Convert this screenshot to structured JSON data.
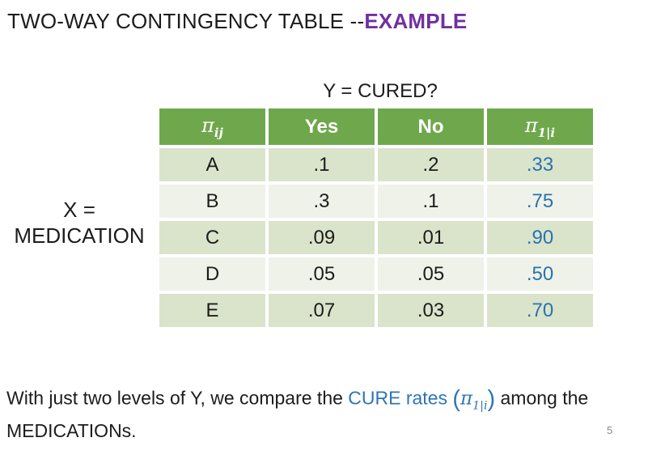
{
  "title": {
    "main": "TWO-WAY CONTINGENCY TABLE --",
    "highlight": "EXAMPLE"
  },
  "table": {
    "top_label": "Y = CURED?",
    "left_label_line1": "X =",
    "left_label_line2": "MEDICATION",
    "header": {
      "pi_symbol": "π",
      "pi_ij_sub": "ij",
      "yes": "Yes",
      "no": "No",
      "pi_cond_symbol": "π",
      "pi_cond_sub": "1|i"
    },
    "rows": [
      {
        "med": "A",
        "yes": ".1",
        "no": ".2",
        "rate": ".33"
      },
      {
        "med": "B",
        "yes": ".3",
        "no": ".1",
        "rate": ".75"
      },
      {
        "med": "C",
        "yes": ".09",
        "no": ".01",
        "rate": ".90"
      },
      {
        "med": "D",
        "yes": ".05",
        "no": ".05",
        "rate": ".50"
      },
      {
        "med": "E",
        "yes": ".07",
        "no": ".03",
        "rate": ".70"
      }
    ]
  },
  "footer": {
    "text_before": "With just two levels of Y, we compare the ",
    "highlight": "CURE rates ",
    "paren_open": "(",
    "pi_symbol": "π",
    "pi_sub": "1|i",
    "paren_close": ")",
    "text_after": " among the MEDICATIONs.",
    "page_number": "5"
  },
  "colors": {
    "header_green": "#6fa84c",
    "row_dark": "#d9e4cb",
    "row_light": "#eef2e9",
    "rate_blue": "#2b72ae",
    "header_pi_blue": "#1f6cab",
    "title_purple": "#7030a0",
    "footer_blue": "#2e75b5",
    "page_number_gray": "#8a8a8a"
  }
}
